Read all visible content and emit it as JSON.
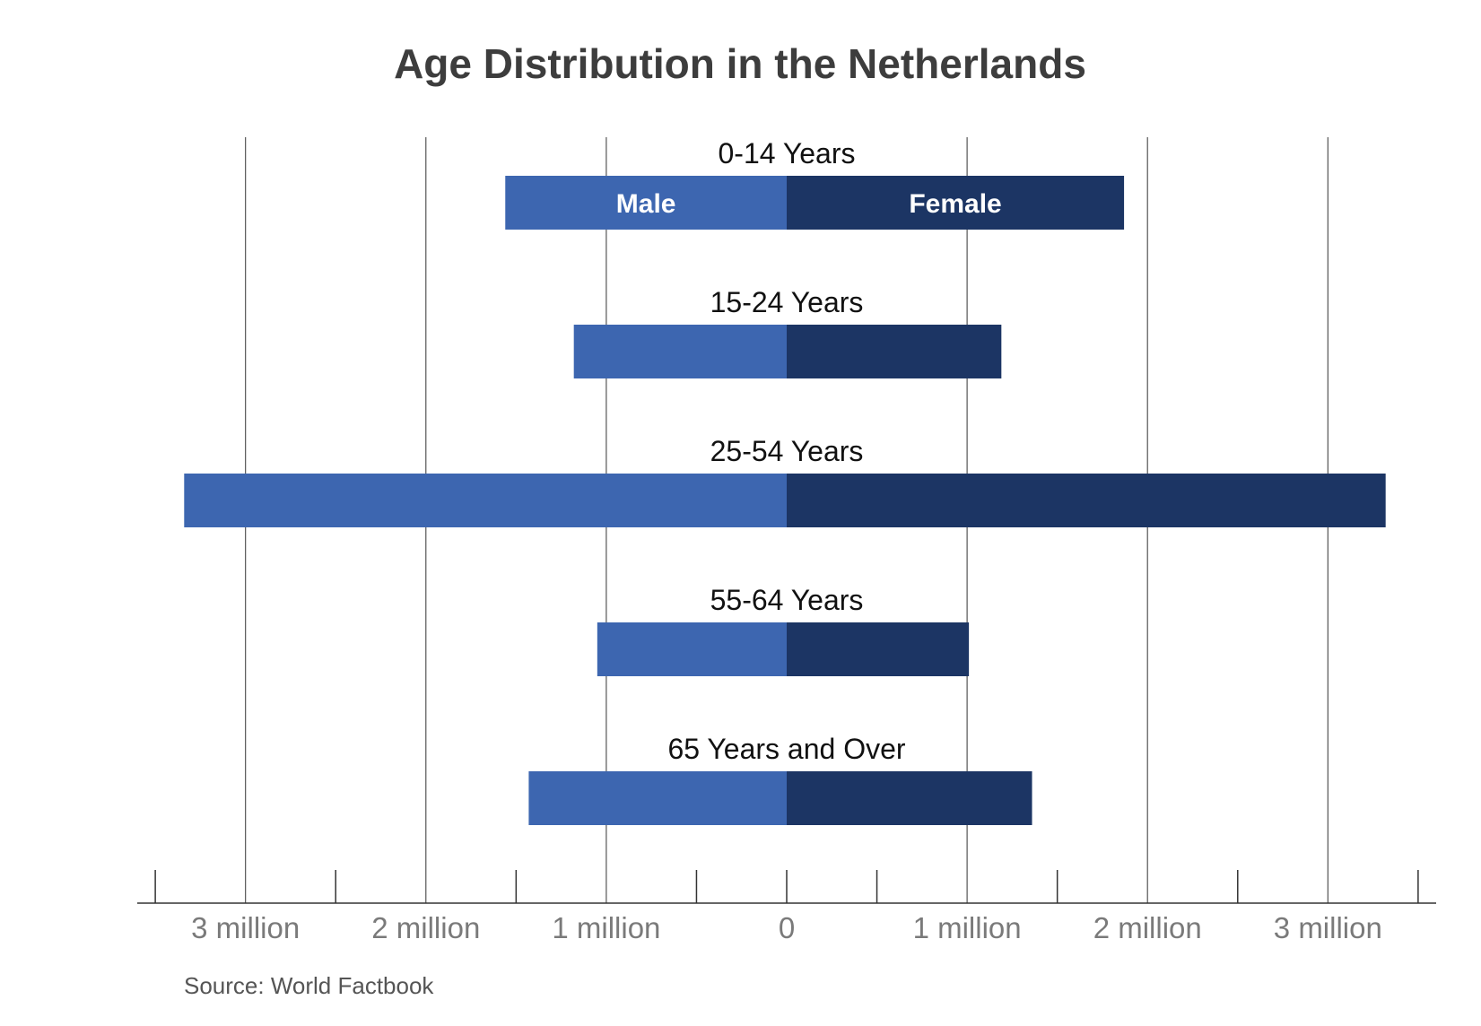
{
  "chart_data": {
    "type": "bar",
    "orientation": "horizontal",
    "layout": "population-pyramid",
    "title": "Age Distribution in the Netherlands",
    "categories": [
      "0-14 Years",
      "15-24 Years",
      "25-54 Years",
      "55-64 Years",
      "65 Years and Over"
    ],
    "series": [
      {
        "name": "Male",
        "color": "#3d66b0",
        "values": [
          1560000,
          1180000,
          3340000,
          1050000,
          1430000
        ]
      },
      {
        "name": "Female",
        "color": "#1c3564",
        "values": [
          1870000,
          1190000,
          3320000,
          1010000,
          1360000
        ]
      }
    ],
    "xlim": [
      -3600000,
      3600000
    ],
    "gridlines": [
      -3000000,
      -2000000,
      -1000000,
      1000000,
      2000000,
      3000000
    ],
    "minor_ticks": [
      -3500000,
      -2500000,
      -1500000,
      -500000,
      0,
      500000,
      1500000,
      2500000,
      3500000
    ],
    "x_ticks": [
      {
        "value": -3000000,
        "label": "3 million"
      },
      {
        "value": -2000000,
        "label": "2 million"
      },
      {
        "value": -1000000,
        "label": "1 million"
      },
      {
        "value": 0,
        "label": "0"
      },
      {
        "value": 1000000,
        "label": "1 million"
      },
      {
        "value": 2000000,
        "label": "2 million"
      },
      {
        "value": 3000000,
        "label": "3 million"
      }
    ],
    "grid": true,
    "legend": "inside-first-bar"
  },
  "source": "Source:  World Factbook"
}
